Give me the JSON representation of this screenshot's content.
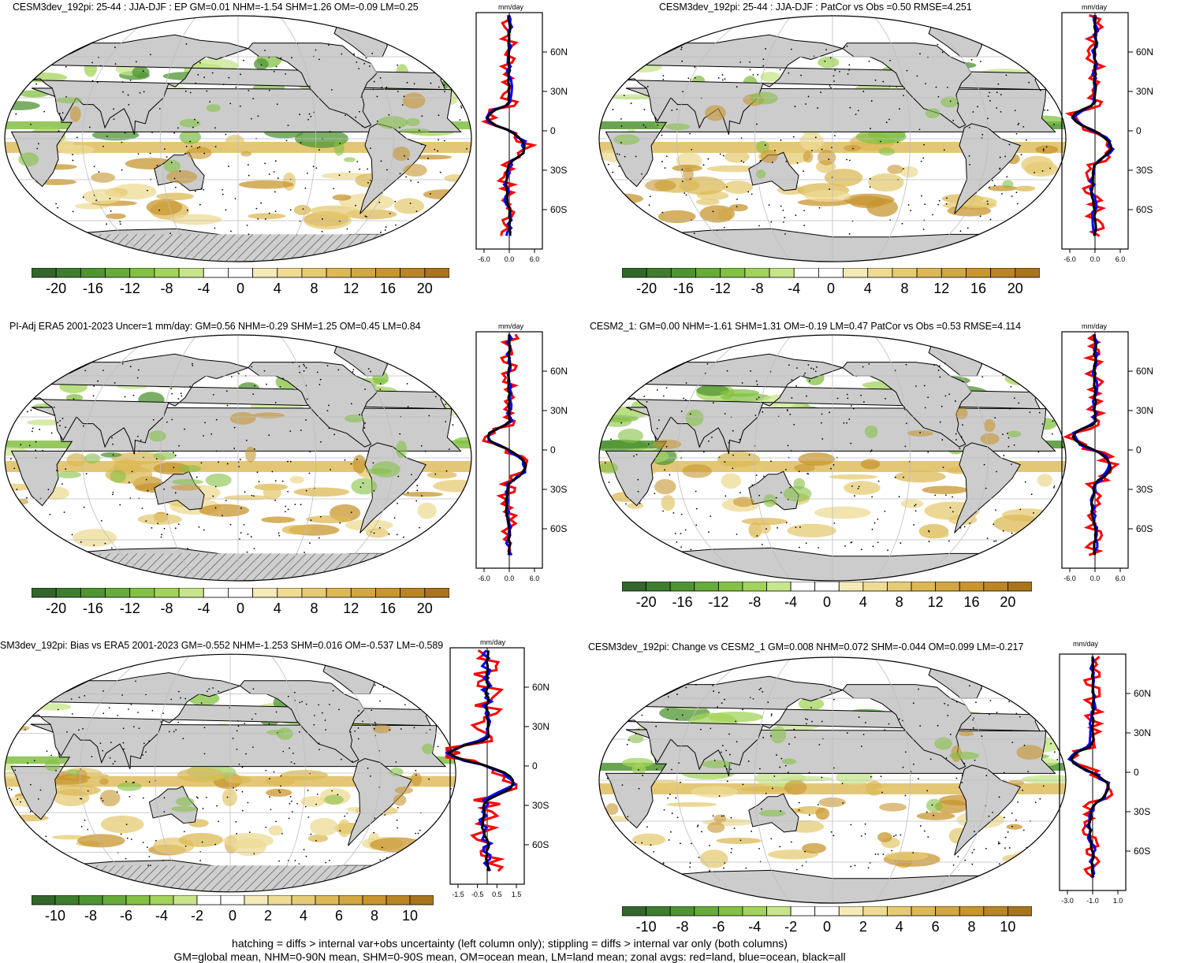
{
  "panels": [
    {
      "title": "CESM3dev_192pi: 25-44 : JJA-DJF : EP GM=0.01 NHM=-1.54 SHM=1.26 OM=-0.09 LM=0.25",
      "units": "mm/day",
      "lat_ticks": [
        "60N",
        "30N",
        "0",
        "30S",
        "60S"
      ],
      "x_ticks": [
        "-6.0",
        "0.0",
        "6.0"
      ],
      "colorbar_labels": [
        "-20",
        "-16",
        "-12",
        "-8",
        "-4",
        "0",
        "4",
        "8",
        "12",
        "16",
        "20"
      ],
      "hatched": true
    },
    {
      "title": "CESM3dev_192pi: 25-44 : JJA-DJF : PatCor vs Obs =0.50 RMSE=4.251",
      "units": "mm/day",
      "lat_ticks": [
        "60N",
        "30N",
        "0",
        "30S",
        "60S"
      ],
      "x_ticks": [
        "-6.0",
        "0.0",
        "6.0"
      ],
      "colorbar_labels": [
        "-20",
        "-16",
        "-12",
        "-8",
        "-4",
        "0",
        "4",
        "8",
        "12",
        "16",
        "20"
      ],
      "hatched": false
    },
    {
      "title": "PI-Adj ERA5 2001-2023 Uncer=1 mm/day: GM=0.56 NHM=-0.29 SHM=1.25 OM=0.45 LM=0.84",
      "units": "mm/day",
      "lat_ticks": [
        "60N",
        "30N",
        "0",
        "30S",
        "60S"
      ],
      "x_ticks": [
        "-6.0",
        "0.0",
        "6.0"
      ],
      "colorbar_labels": [
        "-20",
        "-16",
        "-12",
        "-8",
        "-4",
        "0",
        "4",
        "8",
        "12",
        "16",
        "20"
      ],
      "hatched": true
    },
    {
      "title": "CESM2_1: GM=0.00 NHM=-1.61 SHM=1.31 OM=-0.19 LM=0.47 PatCor vs Obs =0.53 RMSE=4.114",
      "units": "mm/day",
      "lat_ticks": [
        "60N",
        "30N",
        "0",
        "30S",
        "60S"
      ],
      "x_ticks": [
        "-6.0",
        "0.0",
        "6.0"
      ],
      "colorbar_labels": [
        "-20",
        "-16",
        "-12",
        "-8",
        "-4",
        "0",
        "4",
        "8",
        "12",
        "16",
        "20"
      ],
      "hatched": false
    },
    {
      "title": "SM3dev_192pi: Bias vs ERA5 2001-2023 GM=-0.552 NHM=-1.253 SHM=0.016 OM=-0.537 LM=-0.589",
      "units": "mm/day",
      "lat_ticks": [
        "60N",
        "30N",
        "0",
        "30S",
        "60S"
      ],
      "x_ticks": [
        "-1.5",
        "-0.5",
        "0.5",
        "1.5"
      ],
      "colorbar_labels": [
        "-10",
        "-8",
        "-6",
        "-4",
        "-2",
        "0",
        "2",
        "4",
        "6",
        "8",
        "10"
      ],
      "hatched": true
    },
    {
      "title": "CESM3dev_192pi: Change vs CESM2_1 GM=0.008 NHM=0.072 SHM=-0.044 OM=0.099 LM=-0.217",
      "units": "mm/day",
      "lat_ticks": [
        "60N",
        "30N",
        "0",
        "30S",
        "60S"
      ],
      "x_ticks": [
        "-3.0",
        "-1.0",
        "1.0"
      ],
      "colorbar_labels": [
        "-10",
        "-8",
        "-6",
        "-4",
        "-2",
        "0",
        "2",
        "4",
        "6",
        "8",
        "10"
      ],
      "hatched": false
    }
  ],
  "colorbar_colors": [
    "#33662a",
    "#3f7d2e",
    "#4f9432",
    "#67ab3a",
    "#83c043",
    "#a3d35b",
    "#c7e58b",
    "#ffffff",
    "#ffffff",
    "#f5eab8",
    "#eedb94",
    "#e5cb73",
    "#dcb955",
    "#d2a640",
    "#c8952f",
    "#b98525",
    "#a8751d"
  ],
  "footer": {
    "line1": "hatching = diffs > internal var+obs uncertainty (left column only); stippling = diffs > internal var only (both columns)",
    "line2": "GM=global mean, NHM=0-90N mean, SHM=0-90S mean, OM=ocean mean, LM=land mean; zonal avgs: red=land, blue=ocean, black=all"
  }
}
